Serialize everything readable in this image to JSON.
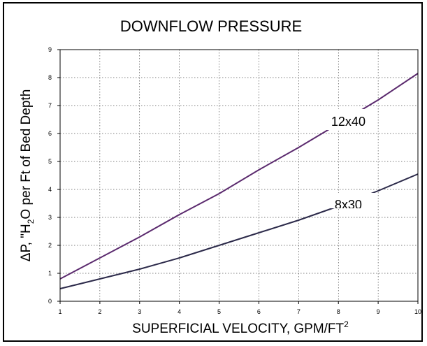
{
  "chart_data": {
    "type": "line",
    "title": "DOWNFLOW PRESSURE",
    "xlabel": "SUPERFICIAL VELOCITY, GPM/FT",
    "xlabel_sup": "2",
    "ylabel_pre": "ΔP, \"H",
    "ylabel_sub": "2",
    "ylabel_post": "O per Ft of Bed Depth",
    "xlim": [
      1,
      10
    ],
    "ylim": [
      0,
      9
    ],
    "xticks": [
      1,
      2,
      3,
      4,
      5,
      6,
      7,
      8,
      9,
      10
    ],
    "yticks": [
      0,
      1,
      2,
      3,
      4,
      5,
      6,
      7,
      8,
      9
    ],
    "grid": true,
    "series": [
      {
        "name": "12x40",
        "color": "#5b2a6e",
        "x": [
          1,
          2,
          3,
          4,
          5,
          6,
          7,
          8,
          9,
          10
        ],
        "y": [
          0.8,
          1.55,
          2.3,
          3.1,
          3.85,
          4.7,
          5.5,
          6.35,
          7.2,
          8.15
        ]
      },
      {
        "name": "8x30",
        "color": "#2c2a4a",
        "x": [
          1,
          2,
          3,
          4,
          5,
          6,
          7,
          8,
          9,
          10
        ],
        "y": [
          0.45,
          0.8,
          1.15,
          1.55,
          2.0,
          2.45,
          2.9,
          3.4,
          3.95,
          4.55
        ]
      }
    ]
  }
}
